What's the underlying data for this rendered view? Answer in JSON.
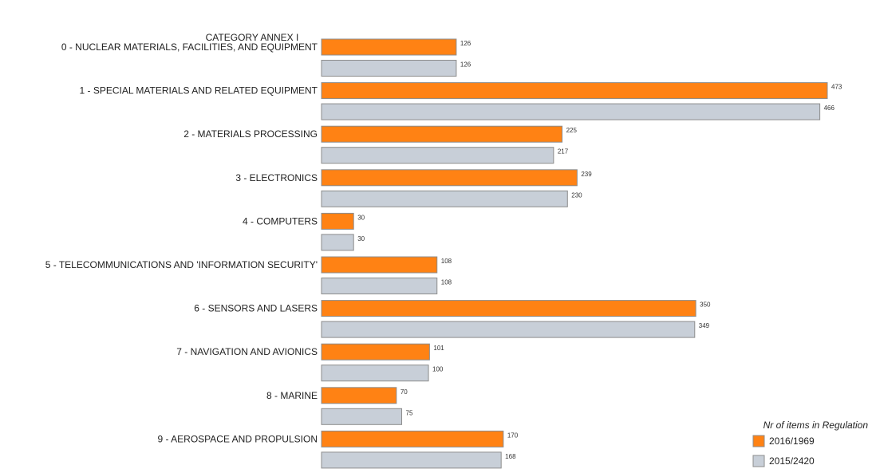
{
  "header": {
    "category_title": "CATEGORY ANNEX I"
  },
  "legend": {
    "title": "Nr of items in Regulation",
    "entries": [
      "2016/1969",
      "2015/2420"
    ]
  },
  "colors": {
    "series_a": "#FF8214",
    "series_b": "#C8CFD8",
    "border": "#8C8C8C"
  },
  "chart_data": {
    "type": "bar",
    "orientation": "horizontal",
    "title": "",
    "category_axis_title": "CATEGORY ANNEX I",
    "categories": [
      "0 - NUCLEAR MATERIALS, FACILITIES, AND EQUIPMENT",
      "1 - SPECIAL MATERIALS AND RELATED EQUIPMENT",
      "2 - MATERIALS PROCESSING",
      "3 - ELECTRONICS",
      "4 - COMPUTERS",
      "5 - TELECOMMUNICATIONS AND 'INFORMATION SECURITY'",
      "6 - SENSORS AND LASERS",
      "7 - NAVIGATION AND AVIONICS",
      "8 - MARINE",
      "9 - AEROSPACE AND PROPULSION"
    ],
    "series": [
      {
        "name": "2016/1969",
        "values": [
          126,
          473,
          225,
          239,
          30,
          108,
          350,
          101,
          70,
          170
        ]
      },
      {
        "name": "2015/2420",
        "values": [
          126,
          466,
          217,
          230,
          30,
          108,
          349,
          100,
          75,
          168
        ]
      }
    ],
    "value_labels": true,
    "legend_title": "Nr of items in Regulation",
    "legend_position": "bottom-right",
    "grid": false
  }
}
